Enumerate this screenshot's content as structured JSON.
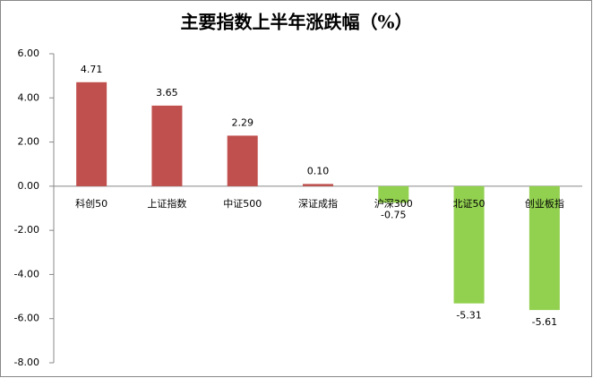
{
  "chart_data": {
    "type": "bar",
    "title": "主要指数上半年涨跌幅（%）",
    "categories": [
      "科创50",
      "上证指数",
      "中证500",
      "深证成指",
      "沪深300",
      "北证50",
      "创业板指"
    ],
    "values": [
      4.71,
      3.65,
      2.29,
      0.1,
      -0.75,
      -5.31,
      -5.61
    ],
    "value_labels": [
      "4.71",
      "3.65",
      "2.29",
      "0.10",
      "-0.75",
      "-5.31",
      "-5.61"
    ],
    "positive_color": "#c0504d",
    "negative_color": "#92d050",
    "ylim": [
      -8,
      6
    ],
    "yticks": [
      {
        "value": -8,
        "label": "-8.00"
      },
      {
        "value": -6,
        "label": "-6.00"
      },
      {
        "value": -4,
        "label": "-4.00"
      },
      {
        "value": -2,
        "label": "-2.00"
      },
      {
        "value": 0,
        "label": "0.00"
      },
      {
        "value": 2,
        "label": "2.00"
      },
      {
        "value": 4,
        "label": "4.00"
      },
      {
        "value": 6,
        "label": "6.00"
      }
    ],
    "grid": false
  }
}
